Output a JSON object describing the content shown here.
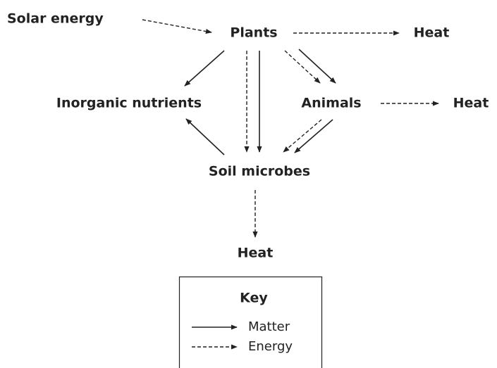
{
  "nodes": [
    {
      "label": "Solar energy"
    },
    {
      "label": "Plants"
    },
    {
      "label": "Heat"
    },
    {
      "label": "Inorganic nutrients"
    },
    {
      "label": "Animals"
    },
    {
      "label": "Heat"
    },
    {
      "label": "Soil microbes"
    },
    {
      "label": "Heat"
    }
  ],
  "key": {
    "title": "Key",
    "items": [
      {
        "label": "Matter"
      },
      {
        "label": "Energy"
      }
    ]
  }
}
